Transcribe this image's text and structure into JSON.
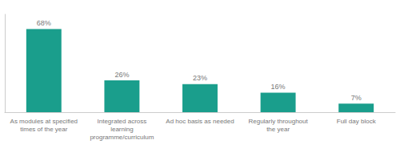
{
  "chart_data": {
    "type": "bar",
    "categories": [
      "As modules at specified\ntimes of the year",
      "Integrated across\nlearning\nprogramme/curriculum",
      "Ad hoc basis as needed",
      "Regularly throughout\nthe year",
      "Full day block"
    ],
    "values": [
      68,
      26,
      23,
      16,
      7
    ],
    "value_labels": [
      "68%",
      "26%",
      "23%",
      "16%",
      "7%"
    ],
    "color": "#1a9e8c",
    "ylim": [
      0,
      80
    ],
    "data_labels": true,
    "tick_labels": "x",
    "grid": false
  }
}
